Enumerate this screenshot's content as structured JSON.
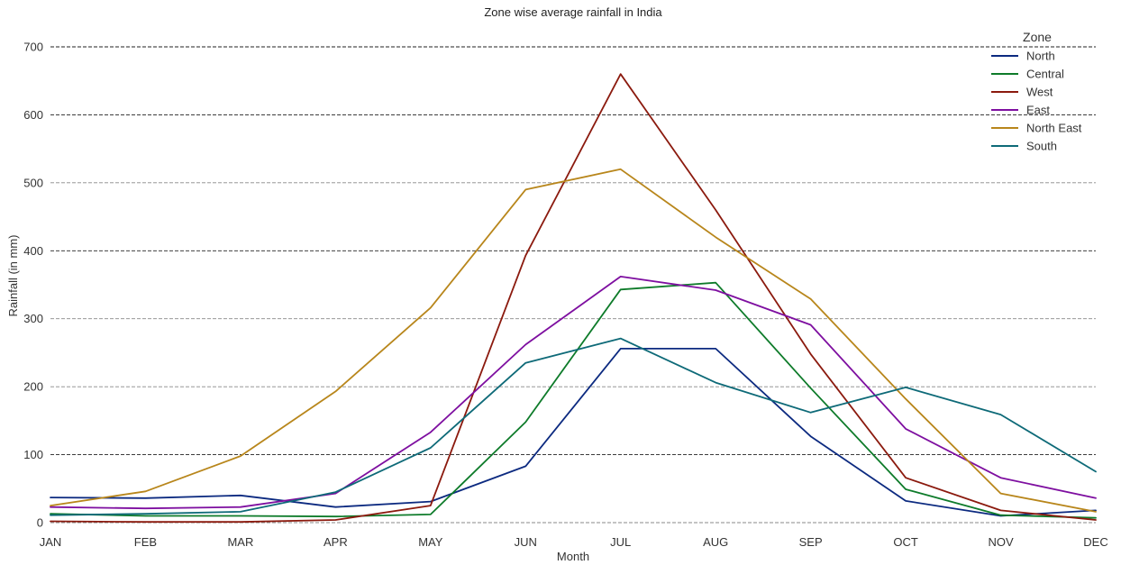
{
  "chart_data": {
    "type": "line",
    "title": "Zone wise average rainfall in India",
    "xlabel": "Month",
    "ylabel": "Rainfall (in mm)",
    "categories": [
      "JAN",
      "FEB",
      "MAR",
      "APR",
      "MAY",
      "JUN",
      "JUL",
      "AUG",
      "SEP",
      "OCT",
      "NOV",
      "DEC"
    ],
    "ylim": [
      0,
      700
    ],
    "yticks": [
      0,
      100,
      200,
      300,
      400,
      500,
      600,
      700
    ],
    "grid": true,
    "legend": {
      "title": "Zone",
      "placement": "top-right"
    },
    "series": [
      {
        "name": "North",
        "color": "#0c2a80",
        "values": [
          37,
          36,
          40,
          23,
          31,
          83,
          256,
          256,
          127,
          32,
          10,
          18
        ]
      },
      {
        "name": "Central",
        "color": "#0e7b2a",
        "values": [
          13,
          10,
          10,
          9,
          12,
          148,
          343,
          353,
          198,
          49,
          11,
          7
        ]
      },
      {
        "name": "West",
        "color": "#8b1a0e",
        "values": [
          2,
          1,
          1,
          4,
          25,
          393,
          660,
          460,
          248,
          66,
          18,
          4
        ]
      },
      {
        "name": "East",
        "color": "#7e0fa0",
        "values": [
          23,
          21,
          23,
          43,
          133,
          262,
          362,
          342,
          291,
          138,
          66,
          36
        ]
      },
      {
        "name": "North East",
        "color": "#b8861b",
        "values": [
          25,
          46,
          98,
          193,
          316,
          490,
          520,
          420,
          329,
          182,
          43,
          16
        ]
      },
      {
        "name": "South",
        "color": "#0e6a78",
        "values": [
          11,
          13,
          16,
          45,
          110,
          235,
          271,
          206,
          162,
          199,
          159,
          75
        ]
      }
    ]
  }
}
